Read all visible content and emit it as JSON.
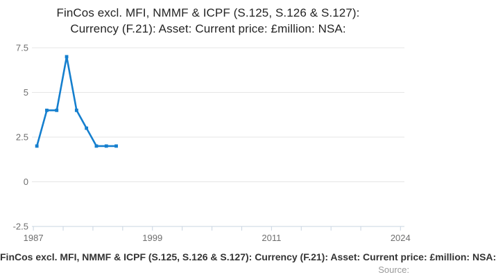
{
  "title": {
    "line1": "FinCos excl. MFI, NMMF & ICPF (S.125, S.126 & S.127):",
    "line2": "Currency (F.21): Asset: Current price: £million: NSA:"
  },
  "footer": {
    "series_label": "FinCos excl. MFI, NMMF & ICPF (S.125, S.126 & S.127): Currency (F.21): Asset: Current price: £million: NSA:",
    "source_label": "Source:"
  },
  "chart_data": {
    "type": "line",
    "title": "FinCos excl. MFI, NMMF & ICPF (S.125, S.126 & S.127): Currency (F.21): Asset: Current price: £million: NSA:",
    "xlabel": "",
    "ylabel": "",
    "x": [
      1987,
      1988,
      1989,
      1990,
      1991,
      1992,
      1993,
      1994,
      1995
    ],
    "values": [
      2,
      4,
      4,
      7,
      4,
      3,
      2,
      2,
      2
    ],
    "x_axis": {
      "range": [
        1987,
        2024
      ],
      "tick_years": [
        1987,
        1990,
        1993,
        1996,
        1999,
        2002,
        2005,
        2008,
        2011,
        2014,
        2017,
        2020,
        2024
      ],
      "labeled_ticks": [
        1987,
        1999,
        2011,
        2024
      ]
    },
    "y_axis": {
      "range": [
        -2.5,
        7.5
      ],
      "ticks": [
        7.5,
        5,
        2.5,
        0,
        -2.5
      ],
      "tick_labels": [
        "7.5",
        "5",
        "2.5",
        "0",
        "-2.5"
      ]
    },
    "grid": true,
    "legend": "none",
    "marker": "square",
    "colors": {
      "line": "#157fce",
      "grid": "#e6e6e6",
      "axis": "#c9d5e2",
      "tick_label": "#6e6e6e",
      "title": "#242424"
    }
  }
}
